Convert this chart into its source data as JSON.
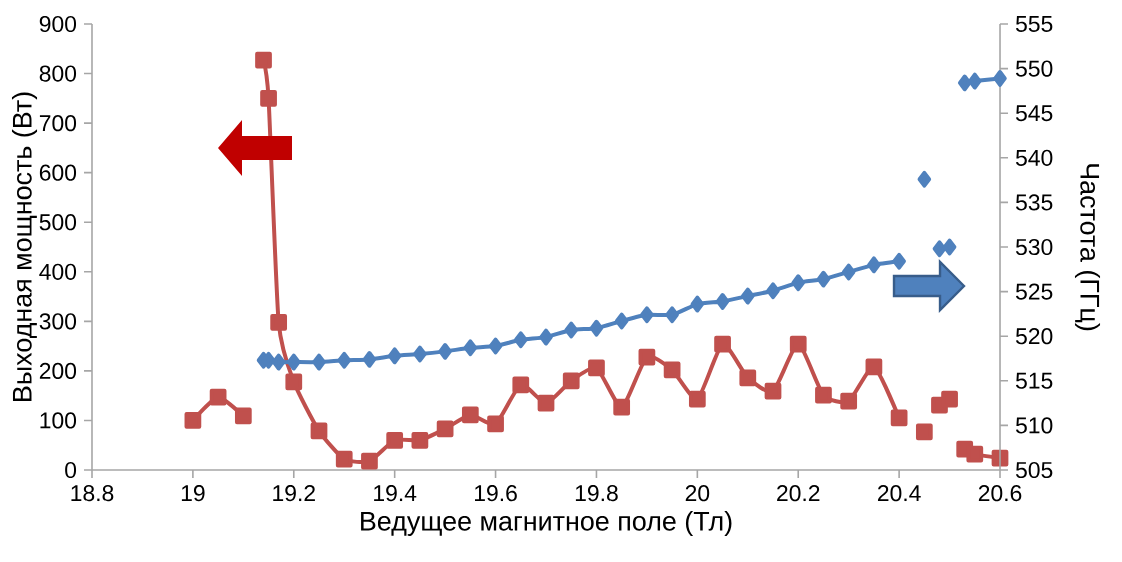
{
  "chart_data": {
    "type": "line",
    "xlabel": "Ведущее магнитное поле (Тл)",
    "ylabel": "Выходная мощность (Вт)",
    "y2label": "Частота (ГГц)",
    "xlim": [
      18.8,
      20.6
    ],
    "xticks": [
      18.8,
      19,
      19.2,
      19.4,
      19.6,
      19.8,
      20,
      20.2,
      20.4,
      20.6
    ],
    "ylim": [
      0,
      900
    ],
    "yticks": [
      0,
      100,
      200,
      300,
      400,
      500,
      600,
      700,
      800,
      900
    ],
    "y2lim": [
      505,
      555
    ],
    "y2ticks": [
      505,
      510,
      515,
      520,
      525,
      530,
      535,
      540,
      545,
      550,
      555
    ],
    "grid": false,
    "line_style": "solid",
    "x": [
      19.0,
      19.05,
      19.1,
      19.12,
      19.14,
      19.15,
      19.17,
      19.2,
      19.25,
      19.3,
      19.35,
      19.4,
      19.45,
      19.5,
      19.55,
      19.6,
      19.65,
      19.7,
      19.75,
      19.8,
      19.85,
      19.9,
      19.95,
      20.0,
      20.05,
      20.1,
      20.15,
      20.2,
      20.25,
      20.3,
      20.35,
      20.4,
      20.42,
      20.45,
      20.46,
      20.48,
      20.5,
      20.52,
      20.53,
      20.55,
      20.6
    ],
    "series": [
      {
        "color": "#c0504d",
        "marker": "square",
        "values": [
          100,
          147,
          109,
          null,
          827,
          750,
          298,
          178,
          79,
          22,
          18,
          60,
          60,
          83,
          111,
          93,
          172,
          135,
          180,
          206,
          127,
          228,
          202,
          143,
          254,
          186,
          159,
          254,
          151,
          139,
          208,
          105,
          null,
          77,
          null,
          131,
          143,
          null,
          42,
          32,
          24
        ]
      },
      {
        "color": "#4f81bd",
        "marker": "diamond",
        "axis": "y2",
        "values": [
          null,
          null,
          null,
          null,
          517.3,
          517.3,
          517.1,
          517.1,
          517.1,
          517.3,
          517.4,
          517.8,
          518.0,
          518.3,
          518.7,
          518.9,
          519.6,
          519.9,
          520.7,
          520.9,
          521.7,
          522.4,
          522.4,
          523.6,
          523.9,
          524.5,
          525.1,
          526.0,
          526.4,
          527.2,
          528.0,
          528.4,
          null,
          537.6,
          null,
          529.8,
          530.0,
          null,
          548.4,
          548.6,
          548.9
        ]
      }
    ]
  }
}
